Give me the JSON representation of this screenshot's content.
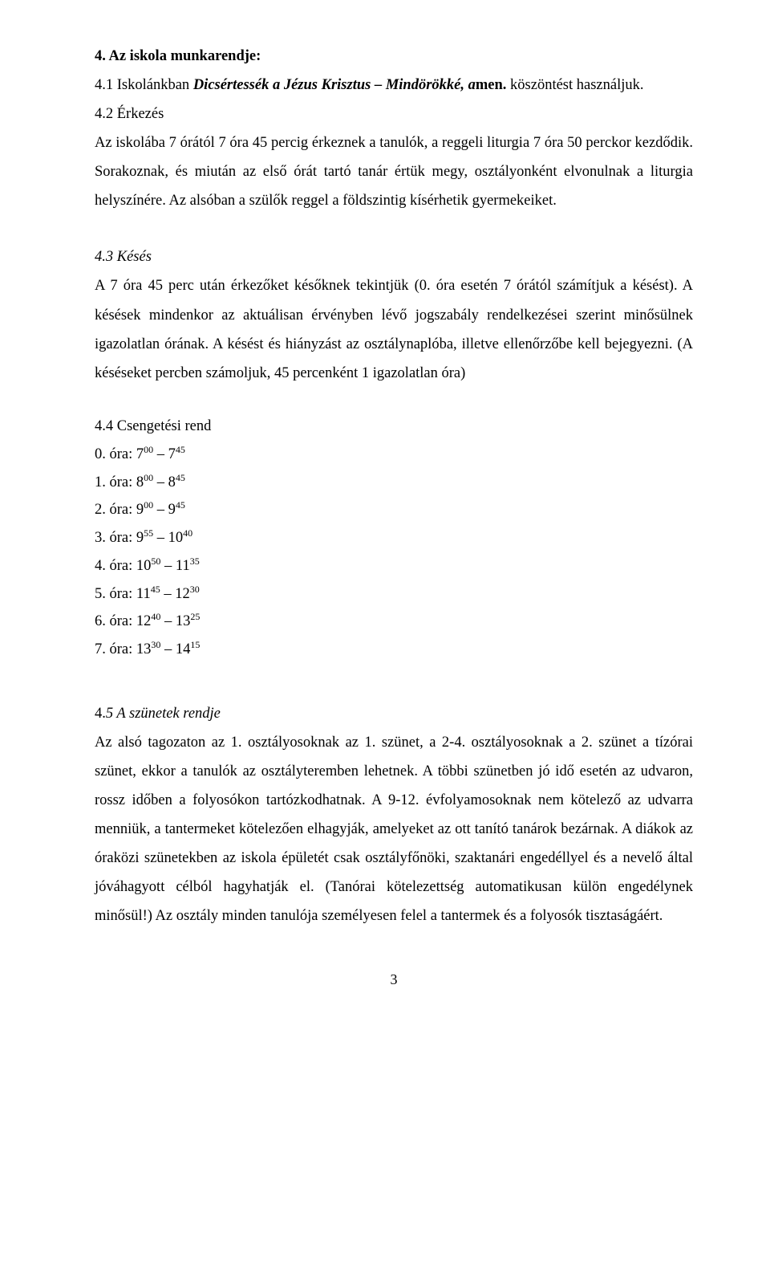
{
  "h4": "4. Az iskola munkarendje:",
  "p41_prefix": "4.1 Iskolánkban ",
  "p41_italic_bold": "Dicsértessék a Jézus Krisztus – Mindörökké, a",
  "p41_bold_tail": "men.",
  "p41_suffix": " köszöntést használjuk.",
  "h42": "4.2 Érkezés",
  "p42a": "Az iskolába 7 órától 7 óra 45 percig érkeznek a tanulók, a reggeli liturgia 7 óra 50 perckor kezdődik. Sorakoznak, és miután az első órát tartó tanár értük megy, osztályonként elvonulnak a liturgia helyszínére. Az alsóban a szülők reggel a földszintig kísérhetik gyermekeiket.",
  "h43": "4.3 Késés",
  "p43a": "A 7 óra 45 perc után érkezőket későknek tekintjük (0. óra esetén 7 órától számítjuk a késést). A késések mindenkor az aktuálisan érvényben lévő jogszabály rendelkezései szerint minősülnek igazolatlan órának. A késést és hiányzást az osztálynaplóba, illetve ellenőrzőbe kell bejegyezni. (A késéseket percben számoljuk, 45 percenként 1 igazolatlan óra)",
  "h44": "4.4 Csengetési rend",
  "schedule": [
    {
      "label": "0. óra:",
      "s1": "7",
      "s1s": "00",
      "mid": " – 7",
      "s2s": "45"
    },
    {
      "label": "1. óra:",
      "s1": "8",
      "s1s": "00",
      "mid": " – 8",
      "s2s": "45"
    },
    {
      "label": "2. óra:",
      "s1": "9",
      "s1s": "00",
      "mid": " – 9",
      "s2s": "45"
    },
    {
      "label": "3. óra:",
      "s1": "9",
      "s1s": "55",
      "mid": " – 10",
      "s2s": "40"
    },
    {
      "label": "4. óra:",
      "s1": "10",
      "s1s": "50",
      "mid": " – 11",
      "s2s": "35"
    },
    {
      "label": "5. óra:",
      "s1": "11",
      "s1s": "45",
      "mid": " – 12",
      "s2s": "30"
    },
    {
      "label": "6. óra:",
      "s1": "12",
      "s1s": "40",
      "mid": " – 13",
      "s2s": "25"
    },
    {
      "label": "7. óra:",
      "s1": "13",
      "s1s": "30",
      "mid": " – 14",
      "s2s": "15"
    }
  ],
  "h45_prefix": "4.",
  "h45_italic": "5 A szünetek rendje",
  "p45a": "Az alsó tagozaton az 1. osztályosoknak az 1. szünet, a 2-4. osztályosoknak a 2. szünet a tízórai szünet, ekkor a tanulók az osztályteremben lehetnek. A többi szünetben jó idő esetén az udvaron, rossz időben a folyosókon tartózkodhatnak. A 9-12. évfolyamosoknak nem kötelező az udvarra menniük, a tantermeket kötelezően elhagyják, amelyeket az ott tanító tanárok bezárnak. A diákok az óraközi szünetekben az iskola épületét csak osztályfőnöki, szaktanári engedéllyel és a nevelő által jóváhagyott célból hagyhatják el. (Tanórai kötelezettség automatikusan külön engedélynek minősül!) Az osztály minden tanulója személyesen felel a tantermek és a folyosók tisztaságáért.",
  "page": "3"
}
